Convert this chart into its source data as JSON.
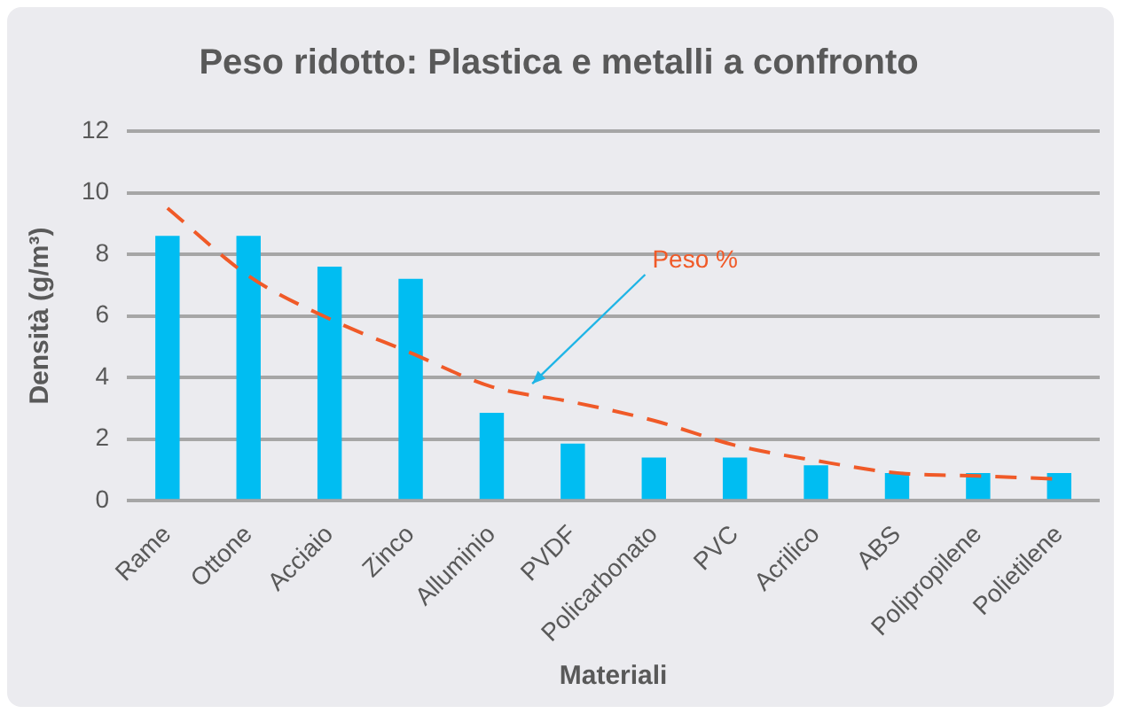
{
  "chart_data": {
    "type": "bar",
    "title": "Peso ridotto: Plastica e metalli a confronto",
    "xlabel": "Materiali",
    "ylabel": "Densità (g/m³)",
    "categories": [
      "Rame",
      "Ottone",
      "Acciaio",
      "Zinco",
      "Alluminio",
      "PVDF",
      "Policarbonato",
      "PVC",
      "Acrilico",
      "ABS",
      "Polipropilene",
      "Polietilene"
    ],
    "series": [
      {
        "color": "#00bdf2",
        "values": [
          8.6,
          8.6,
          7.6,
          7.2,
          2.85,
          1.85,
          1.4,
          1.4,
          1.15,
          0.9,
          0.9,
          0.9
        ]
      },
      {
        "type": "line",
        "color": "#f05a28",
        "line_style": "dashed",
        "marker": "none",
        "values": [
          9.5,
          7.3,
          5.9,
          4.8,
          3.7,
          3.2,
          2.6,
          1.8,
          1.3,
          0.9,
          0.8,
          0.7
        ]
      }
    ],
    "annotations": [
      "Peso %"
    ],
    "ylim": [
      0,
      12
    ],
    "yticks": [
      0,
      2,
      4,
      6,
      8,
      10,
      12
    ],
    "grid": "y",
    "legend": false
  }
}
